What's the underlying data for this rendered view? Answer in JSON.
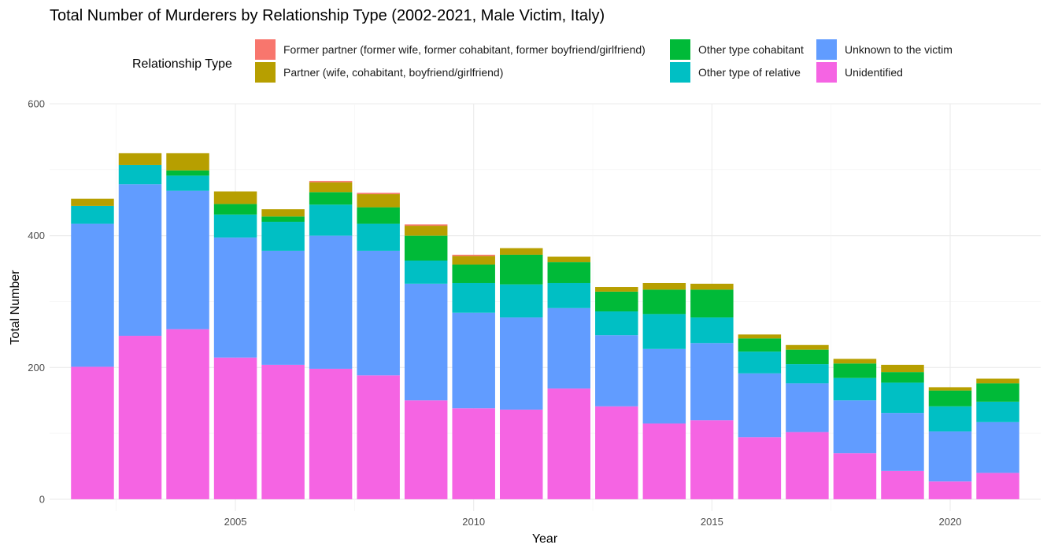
{
  "chart_data": {
    "type": "bar",
    "stacked": true,
    "title": "Total Number of Murderers by Relationship Type (2002-2021, Male Victim, Italy)",
    "xlabel": "Year",
    "ylabel": "Total Number",
    "legend_title": "Relationship Type",
    "legend_position": "top",
    "grid": true,
    "xlim": [
      2001.1,
      2021.9
    ],
    "ylim": [
      -18,
      600
    ],
    "x_ticks": [
      2005,
      2010,
      2015,
      2020
    ],
    "y_ticks": [
      0,
      200,
      400,
      600
    ],
    "x": [
      2002,
      2003,
      2004,
      2005,
      2006,
      2007,
      2008,
      2009,
      2010,
      2011,
      2012,
      2013,
      2014,
      2015,
      2016,
      2017,
      2018,
      2019,
      2020,
      2021
    ],
    "series": [
      {
        "name": "Unidentified",
        "color": "#F564E3",
        "values": [
          201,
          248,
          258,
          215,
          204,
          198,
          188,
          150,
          138,
          136,
          168,
          141,
          115,
          120,
          94,
          102,
          70,
          43,
          27,
          40
        ]
      },
      {
        "name": "Unknown to the victim",
        "color": "#619CFF",
        "values": [
          217,
          230,
          210,
          182,
          173,
          202,
          189,
          177,
          145,
          140,
          122,
          108,
          113,
          117,
          97,
          74,
          80,
          88,
          76,
          77
        ]
      },
      {
        "name": "Other type of relative",
        "color": "#00BFC4",
        "values": [
          27,
          29,
          23,
          35,
          44,
          47,
          41,
          35,
          45,
          50,
          38,
          36,
          53,
          39,
          33,
          29,
          34,
          46,
          38,
          31
        ]
      },
      {
        "name": "Other type cohabitant",
        "color": "#00BA38",
        "values": [
          0,
          0,
          8,
          16,
          8,
          19,
          25,
          38,
          28,
          45,
          32,
          30,
          37,
          42,
          20,
          22,
          22,
          16,
          24,
          28
        ]
      },
      {
        "name": "Partner (wife, cohabitant, boyfriend/girlfriend)",
        "color": "#B79F00",
        "values": [
          11,
          18,
          26,
          19,
          11,
          15,
          20,
          15,
          13,
          10,
          8,
          7,
          10,
          9,
          6,
          7,
          7,
          11,
          5,
          7
        ]
      },
      {
        "name": "Former partner (former wife, former cohabitant, former boyfriend/girlfriend)",
        "color": "#F8766D",
        "values": [
          0,
          0,
          0,
          0,
          0,
          2,
          2,
          2,
          2,
          0,
          0,
          0,
          0,
          0,
          0,
          0,
          0,
          0,
          0,
          0
        ]
      }
    ],
    "legend_order": [
      "Former partner (former wife, former cohabitant, former boyfriend/girlfriend)",
      "Partner (wife, cohabitant, boyfriend/girlfriend)",
      "Other type cohabitant",
      "Other type of relative",
      "Unknown to the victim",
      "Unidentified"
    ]
  }
}
